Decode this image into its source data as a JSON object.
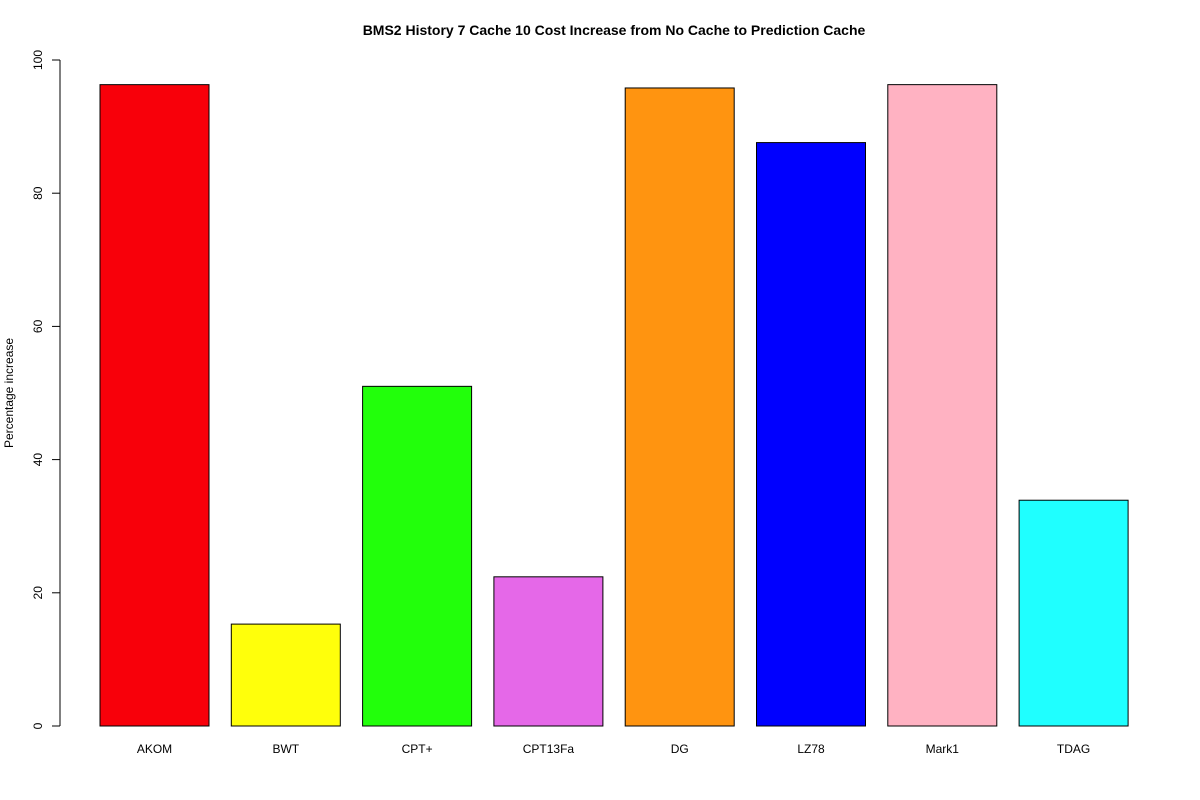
{
  "chart_data": {
    "type": "bar",
    "title": "BMS2  History  7  Cache  10  Cost Increase from No Cache to Prediction Cache",
    "xlabel": "",
    "ylabel": "Percentage increase",
    "ylim": [
      0,
      100
    ],
    "yticks": [
      0,
      20,
      40,
      60,
      80,
      100
    ],
    "grid": false,
    "legend": "none",
    "categories": [
      "AKOM",
      "BWT",
      "CPT+",
      "CPT13Fa",
      "DG",
      "LZ78",
      "Mark1",
      "TDAG"
    ],
    "values": [
      96.3,
      15.3,
      51.0,
      22.4,
      95.8,
      87.6,
      96.3,
      33.9
    ],
    "colors": [
      "#f8000a",
      "#ffff0b",
      "#22ff0b",
      "#e568e8",
      "#ff9410",
      "#0000ff",
      "#ffb2c2",
      "#1fffff"
    ]
  }
}
